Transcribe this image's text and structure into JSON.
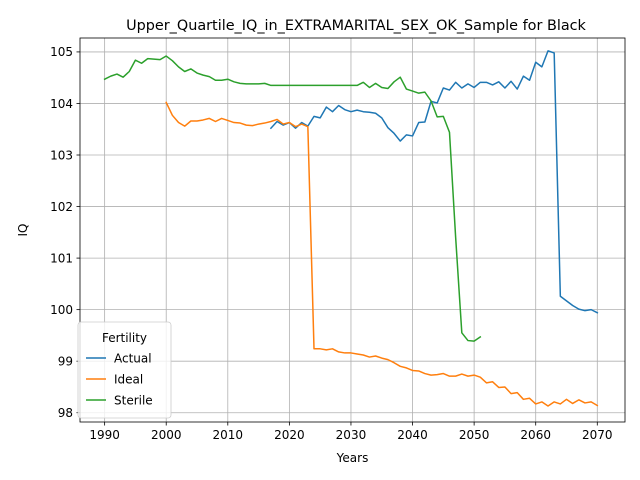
{
  "chart_data": {
    "type": "line",
    "title": "Upper_Quartile_IQ_in_EXTRAMARITAL_SEX_OK_Sample for Black",
    "xlabel": "Years",
    "ylabel": "IQ",
    "xlim": [
      1986,
      2074.5
    ],
    "ylim": [
      97.82,
      105.27
    ],
    "xticks": [
      1990,
      2000,
      2010,
      2020,
      2030,
      2040,
      2050,
      2060,
      2070
    ],
    "yticks": [
      98,
      99,
      100,
      101,
      102,
      103,
      104,
      105
    ],
    "grid": true,
    "legend": {
      "title": "Fertility",
      "position": "lower-left"
    },
    "series": [
      {
        "name": "Actual",
        "color": "#1f77b4",
        "x": [
          2017,
          2018,
          2019,
          2020,
          2021,
          2022,
          2023,
          2024,
          2025,
          2026,
          2027,
          2028,
          2029,
          2030,
          2031,
          2032,
          2033,
          2034,
          2035,
          2036,
          2037,
          2038,
          2039,
          2040,
          2041,
          2042,
          2043,
          2044,
          2045,
          2046,
          2047,
          2048,
          2049,
          2050,
          2051,
          2052,
          2053,
          2054,
          2055,
          2056,
          2057,
          2058,
          2059,
          2060,
          2061,
          2062,
          2063,
          2064,
          2065,
          2066,
          2067,
          2068,
          2069,
          2070
        ],
        "y": [
          103.52,
          103.65,
          103.58,
          103.63,
          103.52,
          103.63,
          103.56,
          103.75,
          103.72,
          103.93,
          103.84,
          103.96,
          103.88,
          103.84,
          103.87,
          103.84,
          103.83,
          103.81,
          103.72,
          103.53,
          103.42,
          103.27,
          103.39,
          103.37,
          103.63,
          103.64,
          104.04,
          104.01,
          104.3,
          104.26,
          104.41,
          104.3,
          104.38,
          104.31,
          104.41,
          104.41,
          104.36,
          104.42,
          104.3,
          104.43,
          104.28,
          104.53,
          104.45,
          104.8,
          104.71,
          105.02,
          104.98,
          100.26,
          100.17,
          100.08,
          100.01,
          99.98,
          100.0,
          99.94
        ]
      },
      {
        "name": "Ideal",
        "color": "#ff7f0e",
        "x": [
          2000,
          2001,
          2002,
          2003,
          2004,
          2005,
          2006,
          2007,
          2008,
          2009,
          2010,
          2011,
          2012,
          2013,
          2014,
          2015,
          2016,
          2017,
          2018,
          2019,
          2020,
          2021,
          2022,
          2023,
          2024,
          2025,
          2026,
          2027,
          2028,
          2029,
          2030,
          2031,
          2032,
          2033,
          2034,
          2035,
          2036,
          2037,
          2038,
          2039,
          2040,
          2041,
          2042,
          2043,
          2044,
          2045,
          2046,
          2047,
          2048,
          2049,
          2050,
          2051,
          2052,
          2053,
          2054,
          2055,
          2056,
          2057,
          2058,
          2059,
          2060,
          2061,
          2062,
          2063,
          2064,
          2065,
          2066,
          2067,
          2068,
          2069,
          2070
        ],
        "y": [
          104.02,
          103.77,
          103.63,
          103.56,
          103.66,
          103.66,
          103.68,
          103.71,
          103.65,
          103.71,
          103.67,
          103.63,
          103.62,
          103.58,
          103.57,
          103.6,
          103.62,
          103.65,
          103.69,
          103.6,
          103.63,
          103.55,
          103.6,
          103.55,
          99.24,
          99.24,
          99.22,
          99.24,
          99.18,
          99.16,
          99.16,
          99.14,
          99.12,
          99.08,
          99.1,
          99.06,
          99.03,
          98.97,
          98.9,
          98.87,
          98.82,
          98.81,
          98.76,
          98.73,
          98.74,
          98.76,
          98.71,
          98.71,
          98.75,
          98.71,
          98.73,
          98.69,
          98.58,
          98.6,
          98.49,
          98.5,
          98.37,
          98.39,
          98.26,
          98.28,
          98.17,
          98.21,
          98.13,
          98.21,
          98.17,
          98.26,
          98.18,
          98.25,
          98.19,
          98.21,
          98.14
        ]
      },
      {
        "name": "Sterile",
        "color": "#2ca02c",
        "x": [
          1990,
          1991,
          1992,
          1993,
          1994,
          1995,
          1996,
          1997,
          1998,
          1999,
          2000,
          2001,
          2002,
          2003,
          2004,
          2005,
          2006,
          2007,
          2008,
          2009,
          2010,
          2011,
          2012,
          2013,
          2014,
          2015,
          2016,
          2017,
          2018,
          2019,
          2020,
          2021,
          2022,
          2023,
          2024,
          2025,
          2026,
          2027,
          2028,
          2029,
          2030,
          2031,
          2032,
          2033,
          2034,
          2035,
          2036,
          2037,
          2038,
          2039,
          2040,
          2041,
          2042,
          2043,
          2044,
          2045,
          2046,
          2047,
          2048,
          2049,
          2050,
          2051
        ],
        "y": [
          104.47,
          104.53,
          104.57,
          104.51,
          104.62,
          104.84,
          104.78,
          104.87,
          104.86,
          104.85,
          104.92,
          104.83,
          104.71,
          104.62,
          104.67,
          104.59,
          104.55,
          104.52,
          104.45,
          104.45,
          104.47,
          104.42,
          104.39,
          104.38,
          104.38,
          104.38,
          104.39,
          104.35,
          104.35,
          104.35,
          104.35,
          104.35,
          104.35,
          104.35,
          104.35,
          104.35,
          104.35,
          104.35,
          104.35,
          104.35,
          104.35,
          104.35,
          104.41,
          104.31,
          104.39,
          104.31,
          104.29,
          104.42,
          104.51,
          104.28,
          104.24,
          104.2,
          104.22,
          104.05,
          103.74,
          103.75,
          103.44,
          101.4,
          99.55,
          99.4,
          99.39,
          99.47
        ]
      }
    ]
  }
}
